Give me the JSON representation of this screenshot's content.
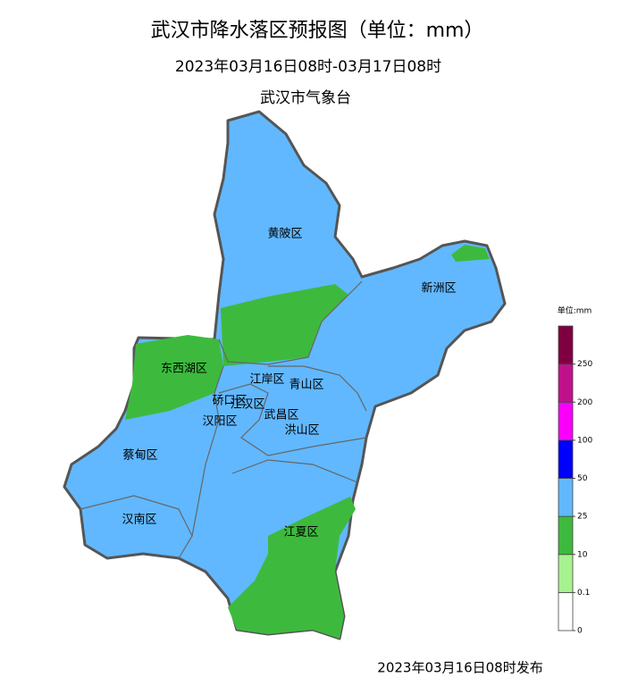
{
  "header": {
    "title": "武汉市降水落区预报图（单位：mm）",
    "period": "2023年03月16日08时-03月17日08时",
    "issuer": "武汉市气象台"
  },
  "districts": [
    "黄陂区",
    "新洲区",
    "东西湖区",
    "江岸区",
    "青山区",
    "硚口区",
    "江汉区",
    "汉阳区",
    "武昌区",
    "洪山区",
    "蔡甸区",
    "汉南区",
    "江夏区"
  ],
  "legend": {
    "title": "单位:mm",
    "ticks": [
      0,
      0.1,
      10,
      25,
      50,
      100,
      200,
      250
    ],
    "colors": [
      "#ffffff",
      "#a6f28f",
      "#3dba3d",
      "#61b8ff",
      "#0000ff",
      "#fa00fa",
      "#c0108c",
      "#7f0040"
    ]
  },
  "footer": "2023年03月16日08时发布"
}
